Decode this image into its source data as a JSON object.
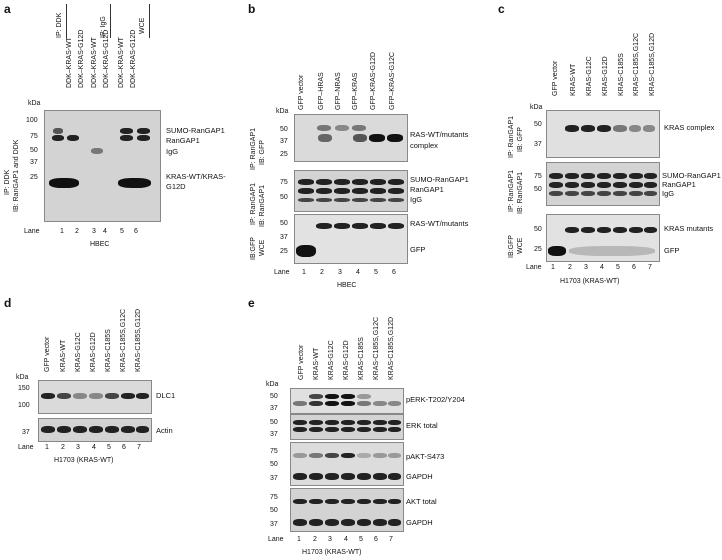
{
  "panels": {
    "a": {
      "letter": "a",
      "ip_groups": [
        "IP: DDK",
        "IP: IgG",
        "WCE"
      ],
      "lanes_header": [
        "DDK–KRAS-WT",
        "DDK–KRAS-G12D",
        "DDK–KRAS-WT",
        "DDK–KRAS-G12D",
        "DDK–KRAS-WT",
        "DDK–KRAS-G12D"
      ],
      "kda_label": "kDa",
      "markers": [
        "100",
        "75",
        "50",
        "37",
        "25"
      ],
      "side_label_1": "IP: DDK",
      "side_label_2": "IB: RanGAP1 and DDK",
      "band_labels": [
        "SUMO-RanGAP1",
        "RanGAP1",
        "IgG",
        "KRAS-WT/KRAS-",
        "G12D"
      ],
      "lane_word": "Lane",
      "lane_numbers": [
        "1",
        "2",
        "3",
        "4",
        "5",
        "6"
      ],
      "cell_line": "HBEC"
    },
    "b": {
      "letter": "b",
      "lanes_header": [
        "GFP vector",
        "GFP–HRAS",
        "GFP–NRAS",
        "GFP–KRAS",
        "GFP–KRAS-G12D",
        "GFP–KRAS-G12C"
      ],
      "kda_label": "kDa",
      "blot1_markers": [
        "50",
        "37",
        "25"
      ],
      "blot1_side": [
        "IP: RanGAP1",
        "IB: GFP"
      ],
      "blot1_labels": [
        "RAS-WT/mutants",
        "complex"
      ],
      "blot2_markers": [
        "75",
        "50"
      ],
      "blot2_side": [
        "IP: RanGAP1",
        "IB: RanGAP1"
      ],
      "blot2_labels": [
        "SUMO-RanGAP1",
        "RanGAP1",
        "IgG"
      ],
      "blot3_markers": [
        "50",
        "37",
        "25"
      ],
      "blot3_side": [
        "IB:GFP",
        "WCE"
      ],
      "blot3_labels": [
        "RAS-WT/mutants",
        "GFP"
      ],
      "lane_word": "Lane",
      "lane_numbers": [
        "1",
        "2",
        "3",
        "4",
        "5",
        "6"
      ],
      "cell_line": "HBEC"
    },
    "c": {
      "letter": "c",
      "lanes_header": [
        "GFP vector",
        "KRAS-WT",
        "KRAS-G12C",
        "KRAS-G12D",
        "KRAS-C185S",
        "KRAS-C185S,G12C",
        "KRAS-C185S,G12D"
      ],
      "kda_label": "kDa",
      "blot1_markers": [
        "50",
        "37"
      ],
      "blot1_side": [
        "IP: RanGAP1",
        "IB: GFP"
      ],
      "blot1_labels": [
        "KRAS complex"
      ],
      "blot2_markers": [
        "75",
        "50"
      ],
      "blot2_side": [
        "IP: RanGAP1",
        "IB: RanGAP1"
      ],
      "blot2_labels": [
        "SUMO-RanGAP1",
        "RanGAP1",
        "IgG"
      ],
      "blot3_markers": [
        "50",
        "25"
      ],
      "blot3_side": [
        "IB:GFP",
        "WCE"
      ],
      "blot3_labels": [
        "KRAS mutants",
        "GFP"
      ],
      "lane_word": "Lane",
      "lane_numbers": [
        "1",
        "2",
        "3",
        "4",
        "5",
        "6",
        "7"
      ],
      "cell_line": "H1703 (KRAS-WT)"
    },
    "d": {
      "letter": "d",
      "lanes_header": [
        "GFP vector",
        "KRAS-WT",
        "KRAS-G12C",
        "KRAS-G12D",
        "KRAS-C185S",
        "KRAS-C185S,G12C",
        "KRAS-C185S,G12D"
      ],
      "kda_label": "kDa",
      "blot1_markers": [
        "150",
        "100"
      ],
      "blot1_labels": [
        "DLC1"
      ],
      "blot2_markers": [
        "37"
      ],
      "blot2_labels": [
        "Actin"
      ],
      "lane_word": "Lane",
      "lane_numbers": [
        "1",
        "2",
        "3",
        "4",
        "5",
        "6",
        "7"
      ],
      "cell_line": "H1703 (KRAS-WT)"
    },
    "e": {
      "letter": "e",
      "lanes_header": [
        "GFP vector",
        "KRAS-WT",
        "KRAS-G12C",
        "KRAS-G12D",
        "KRAS-C185S",
        "KRAS-C185S,G12C",
        "KRAS-C185S,G12D"
      ],
      "kda_label": "kDa",
      "blot1_markers": [
        "50",
        "37"
      ],
      "blot1_labels": [
        "pERK-T202/Y204"
      ],
      "blot2_markers": [
        "50",
        "37"
      ],
      "blot2_labels": [
        "ERK total"
      ],
      "blot3_markers": [
        "75",
        "50",
        "37"
      ],
      "blot3_labels": [
        "pAKT-S473",
        "GAPDH"
      ],
      "blot4_markers": [
        "75",
        "50",
        "37"
      ],
      "blot4_labels": [
        "AKT total",
        "GAPDH"
      ],
      "lane_word": "Lane",
      "lane_numbers": [
        "1",
        "2",
        "3",
        "4",
        "5",
        "6",
        "7"
      ],
      "cell_line": "H1703 (KRAS-WT)"
    }
  }
}
